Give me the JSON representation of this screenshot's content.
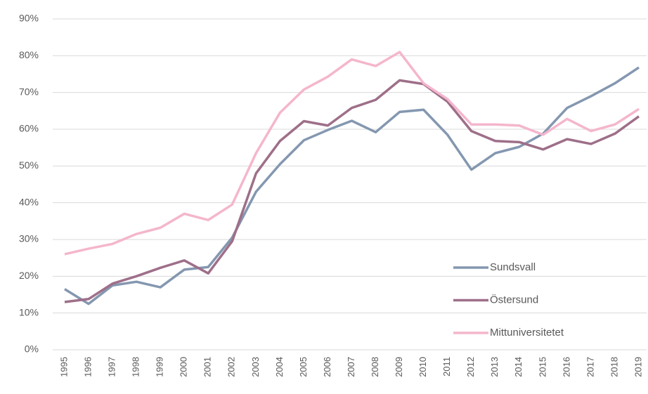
{
  "chart_data": {
    "type": "line",
    "categories": [
      "1995",
      "1996",
      "1997",
      "1998",
      "1999",
      "2000",
      "2001",
      "2002",
      "2003",
      "2004",
      "2005",
      "2006",
      "2007",
      "2008",
      "2009",
      "2010",
      "2011",
      "2012",
      "2013",
      "2014",
      "2015",
      "2016",
      "2017",
      "2018",
      "2019"
    ],
    "series": [
      {
        "name": "Sundsvall",
        "color": "#8497b0",
        "values": [
          16.5,
          12.5,
          17.5,
          18.5,
          17,
          21.8,
          22.5,
          30.5,
          43,
          50.5,
          57,
          59.8,
          62.3,
          59.2,
          64.7,
          65.3,
          58.5,
          49,
          53.5,
          55.2,
          58.8,
          65.8,
          69,
          72.5,
          76.8
        ]
      },
      {
        "name": "Östersund",
        "color": "#9e6f89",
        "values": [
          13,
          13.8,
          18,
          20,
          22.3,
          24.3,
          20.8,
          29.5,
          48,
          56.8,
          62.2,
          61,
          65.8,
          68,
          73.3,
          72.3,
          67.5,
          59.5,
          56.8,
          56.5,
          54.5,
          57.3,
          56,
          58.8,
          63.5
        ]
      },
      {
        "name": "Mittuniversitetet",
        "color": "#f4b6cc",
        "values": [
          26,
          27.5,
          28.8,
          31.5,
          33.2,
          37,
          35.3,
          39.5,
          53.5,
          64.5,
          70.8,
          74.3,
          79,
          77.2,
          81,
          72.5,
          68.2,
          61.3,
          61.3,
          61,
          58.5,
          62.8,
          59.5,
          61.3,
          65.5
        ]
      }
    ],
    "ylim": [
      0,
      90
    ],
    "yticks": [
      {
        "value": 0,
        "label": "0%"
      },
      {
        "value": 10,
        "label": "10%"
      },
      {
        "value": 20,
        "label": "20%"
      },
      {
        "value": 30,
        "label": "30%"
      },
      {
        "value": 40,
        "label": "40%"
      },
      {
        "value": 50,
        "label": "50%"
      },
      {
        "value": 60,
        "label": "60%"
      },
      {
        "value": 70,
        "label": "70%"
      },
      {
        "value": 80,
        "label": "80%"
      },
      {
        "value": 90,
        "label": "90%"
      }
    ],
    "grid": true,
    "legend": "lower right"
  }
}
